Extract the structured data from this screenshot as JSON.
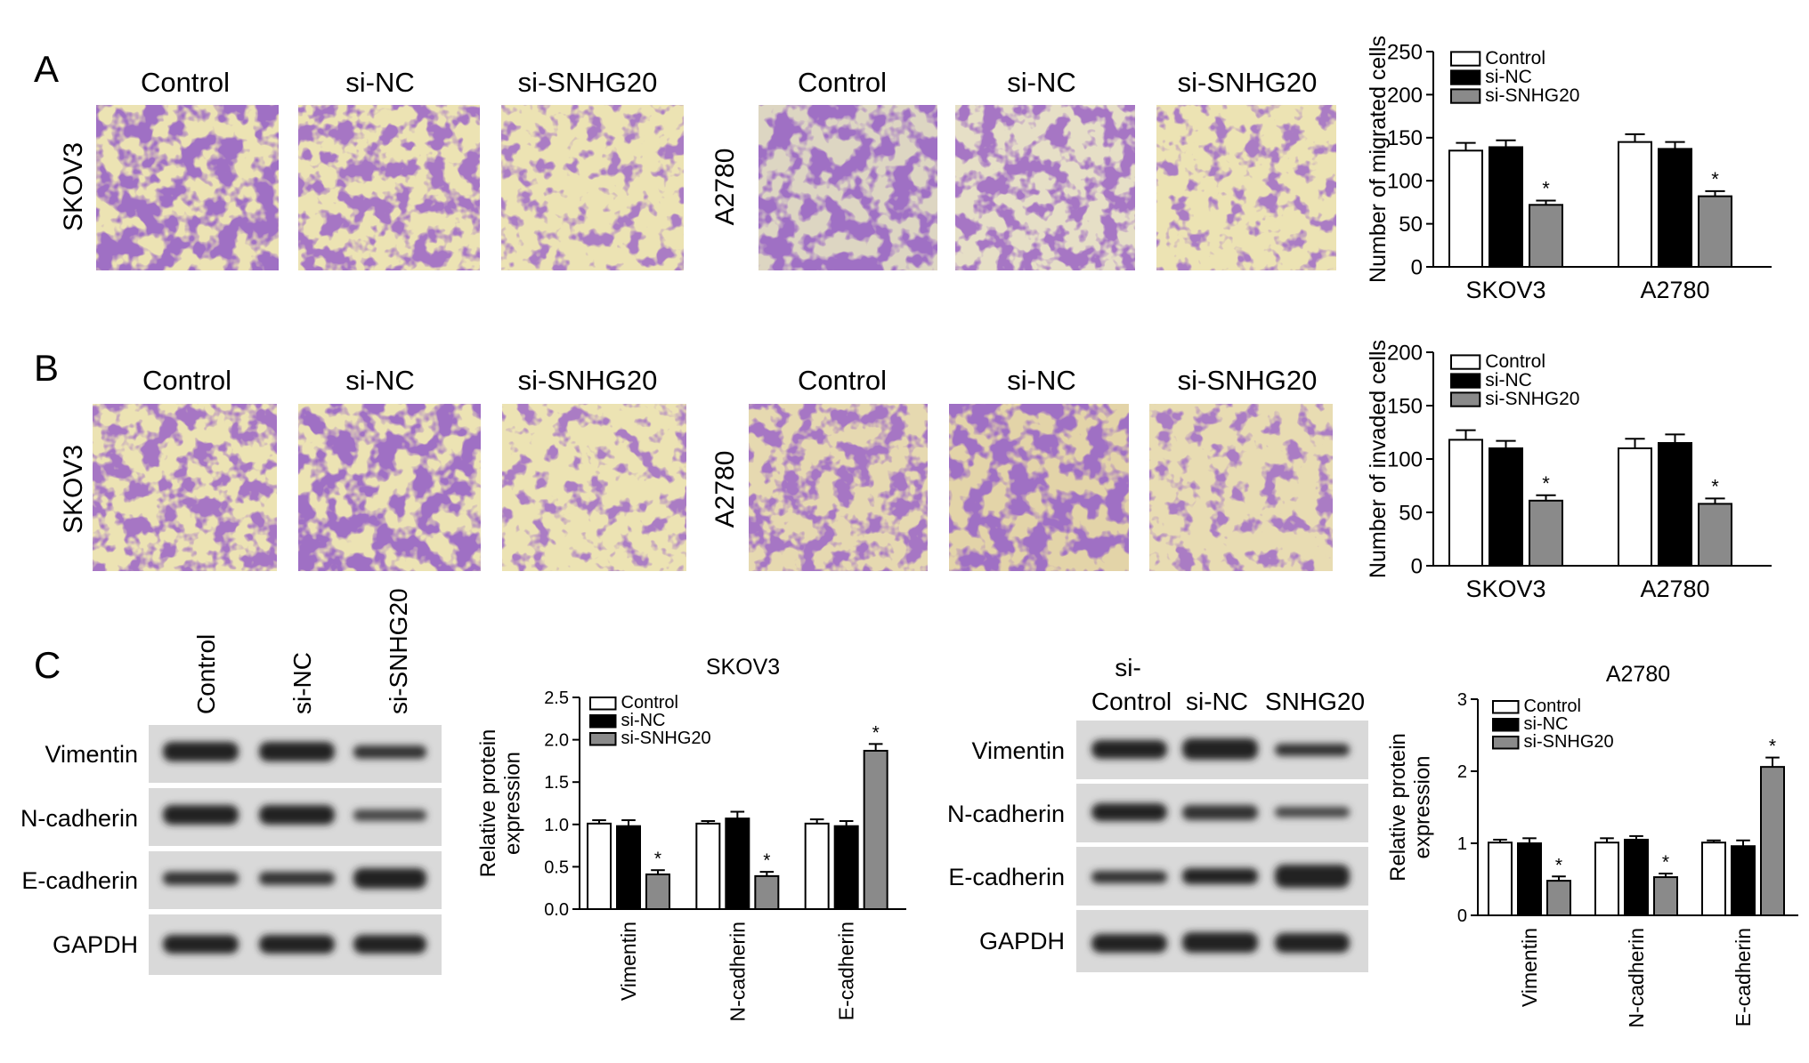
{
  "panel_letters": [
    "A",
    "B",
    "C"
  ],
  "panel_a": {
    "groups": [
      "Control",
      "si-NC",
      "si-SNHG20"
    ],
    "cell_lines": [
      "SKOV3",
      "A2780"
    ],
    "legend": [
      "Control",
      "si-NC",
      "si-SNHG20"
    ],
    "y_label": "Number of migrated cells",
    "y_ticks": [
      "0",
      "50",
      "100",
      "150",
      "200",
      "250"
    ]
  },
  "panel_b": {
    "groups": [
      "Control",
      "si-NC",
      "si-SNHG20"
    ],
    "cell_lines": [
      "SKOV3",
      "A2780"
    ],
    "legend": [
      "Control",
      "si-NC",
      "si-SNHG20"
    ],
    "y_label": "Number of invaded cells",
    "y_ticks": [
      "0",
      "50",
      "100",
      "150",
      "200"
    ]
  },
  "panel_c": {
    "blot_left_lanes": [
      "Control",
      "si-NC",
      "si-SNHG20"
    ],
    "blot_right_lanes_line1": [
      "",
      "",
      "si-"
    ],
    "blot_right_lanes_line2": [
      "Control",
      "si-NC",
      "SNHG20"
    ],
    "proteins": [
      "Vimentin",
      "N-cadherin",
      "E-cadherin",
      "GAPDH"
    ],
    "chart_skov3": {
      "title": "SKOV3",
      "y_label": [
        "Relative protein",
        "expression"
      ],
      "y_ticks": [
        "0.0",
        "0.5",
        "1.0",
        "1.5",
        "2.0",
        "2.5"
      ],
      "legend": [
        "Control",
        "si-NC",
        "si-SNHG20"
      ]
    },
    "chart_a2780": {
      "title": "A2780",
      "y_label": [
        "Relative protein",
        "expression"
      ],
      "y_ticks": [
        "0",
        "1",
        "2",
        "3"
      ],
      "legend": [
        "Control",
        "si-NC",
        "si-SNHG20"
      ]
    }
  },
  "chart_data": [
    {
      "type": "bar",
      "id": "migration",
      "ylabel": "Number of migrated cells",
      "categories": [
        "SKOV3",
        "A2780"
      ],
      "ylim": [
        0,
        250
      ],
      "series": [
        {
          "name": "Control",
          "values": [
            135,
            145
          ],
          "errors": [
            9,
            9
          ]
        },
        {
          "name": "si-NC",
          "values": [
            139,
            137
          ],
          "errors": [
            8,
            8
          ]
        },
        {
          "name": "si-SNHG20",
          "values": [
            72,
            82
          ],
          "errors": [
            5,
            6
          ]
        }
      ],
      "significant": [
        "si-SNHG20"
      ],
      "legend": "top-right",
      "grid": false
    },
    {
      "type": "bar",
      "id": "invasion",
      "ylabel": "Number of invaded cells",
      "categories": [
        "SKOV3",
        "A2780"
      ],
      "ylim": [
        0,
        200
      ],
      "series": [
        {
          "name": "Control",
          "values": [
            118,
            110
          ],
          "errors": [
            9,
            9
          ]
        },
        {
          "name": "si-NC",
          "values": [
            110,
            115
          ],
          "errors": [
            7,
            8
          ]
        },
        {
          "name": "si-SNHG20",
          "values": [
            61,
            58
          ],
          "errors": [
            5,
            5
          ]
        }
      ],
      "significant": [
        "si-SNHG20"
      ],
      "legend": "top-right",
      "grid": false
    },
    {
      "type": "bar",
      "id": "skov3_protein",
      "title": "SKOV3",
      "ylabel": "Relative protein expression",
      "categories": [
        "Vimentin",
        "N-cadherin",
        "E-cadherin"
      ],
      "ylim": [
        0,
        2.5
      ],
      "series": [
        {
          "name": "Control",
          "values": [
            1.01,
            1.01,
            1.01
          ],
          "errors": [
            0.04,
            0.03,
            0.05
          ]
        },
        {
          "name": "si-NC",
          "values": [
            0.98,
            1.07,
            0.98
          ],
          "errors": [
            0.07,
            0.08,
            0.06
          ]
        },
        {
          "name": "si-SNHG20",
          "values": [
            0.41,
            0.39,
            1.87
          ],
          "errors": [
            0.05,
            0.05,
            0.08
          ]
        }
      ],
      "significant": [
        "si-SNHG20"
      ],
      "legend": "top-left",
      "grid": false
    },
    {
      "type": "bar",
      "id": "a2780_protein",
      "title": "A2780",
      "ylabel": "Relative protein expression",
      "categories": [
        "Vimentin",
        "N-cadherin",
        "E-cadherin"
      ],
      "ylim": [
        0,
        3
      ],
      "series": [
        {
          "name": "Control",
          "values": [
            1.01,
            1.01,
            1.01
          ],
          "errors": [
            0.04,
            0.06,
            0.03
          ]
        },
        {
          "name": "si-NC",
          "values": [
            1.0,
            1.05,
            0.96
          ],
          "errors": [
            0.07,
            0.05,
            0.08
          ]
        },
        {
          "name": "si-SNHG20",
          "values": [
            0.48,
            0.53,
            2.06
          ],
          "errors": [
            0.06,
            0.05,
            0.13
          ]
        }
      ],
      "significant": [
        "si-SNHG20"
      ],
      "legend": "top-left",
      "grid": false
    }
  ],
  "colors": {
    "control_fill": "#ffffff",
    "si_nc_fill": "#000000",
    "si_snhg20_fill": "#8a8a8a",
    "stain_purple": "#5a2a8a",
    "background_beige": "#ece3b3"
  }
}
